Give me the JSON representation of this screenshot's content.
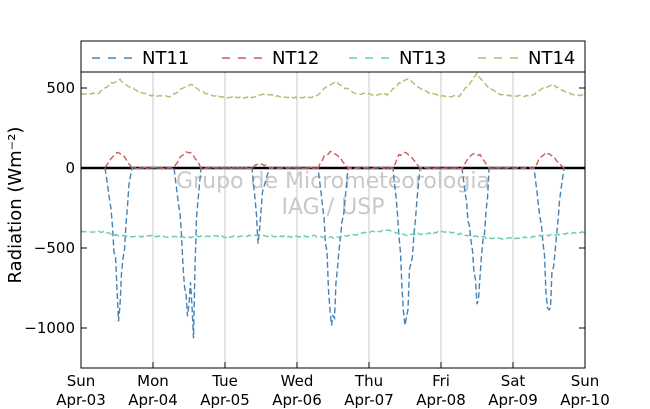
{
  "chart_data": {
    "type": "line",
    "ylabel": "Radiation (Wm⁻²)",
    "ylim": [
      -1250,
      600
    ],
    "xlim": [
      "2016-04-03 00:00",
      "2016-04-10 00:00"
    ],
    "yticks": [
      500,
      0,
      -500,
      -1000
    ],
    "ytick_labels": [
      "500",
      "0",
      "−500",
      "−1000"
    ],
    "xtick_labels": [
      {
        "day": "Sun",
        "date": "Apr-03"
      },
      {
        "day": "Mon",
        "date": "Apr-04"
      },
      {
        "day": "Tue",
        "date": "Apr-05"
      },
      {
        "day": "Wed",
        "date": "Apr-06"
      },
      {
        "day": "Thu",
        "date": "Apr-07"
      },
      {
        "day": "Fri",
        "date": "Apr-08"
      },
      {
        "day": "Sat",
        "date": "Apr-09"
      },
      {
        "day": "Sun",
        "date": "Apr-10"
      }
    ],
    "grid": "vertical",
    "legend_position": "top",
    "zero_line": true,
    "watermark": [
      "Grupo de Micrometeorologia",
      "IAG / USP"
    ],
    "series": [
      {
        "name": "NT11",
        "color": "#4682b4",
        "values": [
          [
            "2016-04-03 08:00",
            0
          ],
          [
            "2016-04-03 10:00",
            -250
          ],
          [
            "2016-04-03 11:30",
            -600
          ],
          [
            "2016-04-03 12:30",
            -940
          ],
          [
            "2016-04-03 13:30",
            -700
          ],
          [
            "2016-04-03 15:00",
            -350
          ],
          [
            "2016-04-03 16:00",
            -100
          ],
          [
            "2016-04-03 17:00",
            0
          ],
          [
            "2016-04-04 07:00",
            0
          ],
          [
            "2016-04-04 09:00",
            -300
          ],
          [
            "2016-04-04 10:30",
            -700
          ],
          [
            "2016-04-04 11:30",
            -850
          ],
          [
            "2016-04-04 12:30",
            -700
          ],
          [
            "2016-04-04 13:30",
            -1100
          ],
          [
            "2016-04-04 14:30",
            -300
          ],
          [
            "2016-04-04 15:30",
            -100
          ],
          [
            "2016-04-04 16:00",
            0
          ],
          [
            "2016-04-05 09:00",
            0
          ],
          [
            "2016-04-05 10:00",
            -200
          ],
          [
            "2016-04-05 11:00",
            -450
          ],
          [
            "2016-04-05 12:30",
            -150
          ],
          [
            "2016-04-05 14:00",
            -50
          ],
          [
            "2016-04-05 15:00",
            0
          ],
          [
            "2016-04-06 07:00",
            0
          ],
          [
            "2016-04-06 09:00",
            -300
          ],
          [
            "2016-04-06 10:30",
            -700
          ],
          [
            "2016-04-06 11:30",
            -920
          ],
          [
            "2016-04-06 12:30",
            -850
          ],
          [
            "2016-04-06 14:00",
            -500
          ],
          [
            "2016-04-06 15:30",
            -300
          ],
          [
            "2016-04-06 17:00",
            0
          ],
          [
            "2016-04-07 08:00",
            0
          ],
          [
            "2016-04-07 10:00",
            -400
          ],
          [
            "2016-04-07 11:00",
            -700
          ],
          [
            "2016-04-07 12:00",
            -990
          ],
          [
            "2016-04-07 13:00",
            -800
          ],
          [
            "2016-04-07 14:30",
            -500
          ],
          [
            "2016-04-07 16:00",
            -200
          ],
          [
            "2016-04-07 17:00",
            0
          ],
          [
            "2016-04-08 07:00",
            0
          ],
          [
            "2016-04-08 09:00",
            -300
          ],
          [
            "2016-04-08 10:30",
            -500
          ],
          [
            "2016-04-08 12:00",
            -850
          ],
          [
            "2016-04-08 13:00",
            -700
          ],
          [
            "2016-04-08 14:30",
            -400
          ],
          [
            "2016-04-08 15:30",
            -200
          ],
          [
            "2016-04-08 16:00",
            0
          ],
          [
            "2016-04-09 07:00",
            0
          ],
          [
            "2016-04-09 09:00",
            -300
          ],
          [
            "2016-04-09 10:30",
            -600
          ],
          [
            "2016-04-09 11:30",
            -950
          ],
          [
            "2016-04-09 12:30",
            -800
          ],
          [
            "2016-04-09 14:00",
            -500
          ],
          [
            "2016-04-09 15:30",
            -200
          ],
          [
            "2016-04-09 17:00",
            0
          ]
        ]
      },
      {
        "name": "NT12",
        "color": "#cd5c5c",
        "values": [
          [
            "2016-04-03 08:00",
            0
          ],
          [
            "2016-04-03 10:00",
            60
          ],
          [
            "2016-04-03 12:00",
            100
          ],
          [
            "2016-04-03 14:00",
            80
          ],
          [
            "2016-04-03 16:00",
            30
          ],
          [
            "2016-04-03 17:00",
            0
          ],
          [
            "2016-04-04 07:00",
            0
          ],
          [
            "2016-04-04 09:00",
            70
          ],
          [
            "2016-04-04 11:00",
            100
          ],
          [
            "2016-04-04 13:00",
            90
          ],
          [
            "2016-04-04 15:00",
            40
          ],
          [
            "2016-04-04 16:00",
            0
          ],
          [
            "2016-04-05 09:00",
            0
          ],
          [
            "2016-04-05 11:00",
            30
          ],
          [
            "2016-04-05 13:00",
            20
          ],
          [
            "2016-04-05 15:00",
            0
          ],
          [
            "2016-04-06 07:00",
            0
          ],
          [
            "2016-04-06 09:00",
            70
          ],
          [
            "2016-04-06 11:00",
            100
          ],
          [
            "2016-04-06 13:00",
            90
          ],
          [
            "2016-04-06 15:00",
            50
          ],
          [
            "2016-04-06 17:00",
            0
          ],
          [
            "2016-04-07 08:00",
            0
          ],
          [
            "2016-04-07 10:00",
            80
          ],
          [
            "2016-04-07 12:00",
            95
          ],
          [
            "2016-04-07 14:00",
            70
          ],
          [
            "2016-04-07 17:00",
            0
          ],
          [
            "2016-04-08 07:00",
            0
          ],
          [
            "2016-04-08 09:00",
            60
          ],
          [
            "2016-04-08 11:00",
            90
          ],
          [
            "2016-04-08 13:00",
            80
          ],
          [
            "2016-04-08 15:00",
            30
          ],
          [
            "2016-04-08 16:00",
            0
          ],
          [
            "2016-04-09 07:00",
            0
          ],
          [
            "2016-04-09 09:00",
            60
          ],
          [
            "2016-04-09 11:00",
            95
          ],
          [
            "2016-04-09 13:00",
            80
          ],
          [
            "2016-04-09 15:00",
            40
          ],
          [
            "2016-04-09 17:00",
            0
          ]
        ]
      },
      {
        "name": "NT13",
        "color": "#66cdaa",
        "values": [
          [
            "2016-04-03 00:00",
            -400
          ],
          [
            "2016-04-03 06:00",
            -395
          ],
          [
            "2016-04-03 12:00",
            -420
          ],
          [
            "2016-04-03 18:00",
            -430
          ],
          [
            "2016-04-04 00:00",
            -425
          ],
          [
            "2016-04-04 06:00",
            -430
          ],
          [
            "2016-04-04 12:00",
            -435
          ],
          [
            "2016-04-04 18:00",
            -425
          ],
          [
            "2016-04-05 00:00",
            -430
          ],
          [
            "2016-04-05 06:00",
            -425
          ],
          [
            "2016-04-05 12:00",
            -420
          ],
          [
            "2016-04-05 18:00",
            -430
          ],
          [
            "2016-04-06 00:00",
            -430
          ],
          [
            "2016-04-06 06:00",
            -425
          ],
          [
            "2016-04-06 12:00",
            -435
          ],
          [
            "2016-04-06 18:00",
            -420
          ],
          [
            "2016-04-07 00:00",
            -400
          ],
          [
            "2016-04-07 06:00",
            -390
          ],
          [
            "2016-04-07 12:00",
            -420
          ],
          [
            "2016-04-07 18:00",
            -410
          ],
          [
            "2016-04-08 00:00",
            -400
          ],
          [
            "2016-04-08 06:00",
            -410
          ],
          [
            "2016-04-08 12:00",
            -430
          ],
          [
            "2016-04-08 18:00",
            -440
          ],
          [
            "2016-04-09 00:00",
            -440
          ],
          [
            "2016-04-09 06:00",
            -430
          ],
          [
            "2016-04-09 12:00",
            -420
          ],
          [
            "2016-04-09 18:00",
            -410
          ],
          [
            "2016-04-10 00:00",
            -400
          ]
        ]
      },
      {
        "name": "NT14",
        "color": "#bdb76b",
        "values": [
          [
            "2016-04-03 00:00",
            460
          ],
          [
            "2016-04-03 06:00",
            470
          ],
          [
            "2016-04-03 10:00",
            530
          ],
          [
            "2016-04-03 13:00",
            550
          ],
          [
            "2016-04-03 16:00",
            510
          ],
          [
            "2016-04-03 20:00",
            470
          ],
          [
            "2016-04-04 00:00",
            450
          ],
          [
            "2016-04-04 06:00",
            450
          ],
          [
            "2016-04-04 10:00",
            500
          ],
          [
            "2016-04-04 13:00",
            520
          ],
          [
            "2016-04-04 16:00",
            480
          ],
          [
            "2016-04-04 20:00",
            450
          ],
          [
            "2016-04-05 00:00",
            440
          ],
          [
            "2016-04-05 08:00",
            440
          ],
          [
            "2016-04-05 13:00",
            460
          ],
          [
            "2016-04-05 20:00",
            445
          ],
          [
            "2016-04-06 00:00",
            440
          ],
          [
            "2016-04-06 06:00",
            445
          ],
          [
            "2016-04-06 10:00",
            510
          ],
          [
            "2016-04-06 13:00",
            540
          ],
          [
            "2016-04-06 16:00",
            500
          ],
          [
            "2016-04-06 20:00",
            465
          ],
          [
            "2016-04-07 00:00",
            460
          ],
          [
            "2016-04-07 06:00",
            460
          ],
          [
            "2016-04-07 10:00",
            530
          ],
          [
            "2016-04-07 13:00",
            560
          ],
          [
            "2016-04-07 16:00",
            510
          ],
          [
            "2016-04-07 20:00",
            470
          ],
          [
            "2016-04-08 00:00",
            450
          ],
          [
            "2016-04-08 06:00",
            450
          ],
          [
            "2016-04-08 10:00",
            540
          ],
          [
            "2016-04-08 12:00",
            590
          ],
          [
            "2016-04-08 16:00",
            500
          ],
          [
            "2016-04-08 20:00",
            460
          ],
          [
            "2016-04-09 00:00",
            450
          ],
          [
            "2016-04-09 06:00",
            450
          ],
          [
            "2016-04-09 10:00",
            500
          ],
          [
            "2016-04-09 13:00",
            520
          ],
          [
            "2016-04-09 16:00",
            490
          ],
          [
            "2016-04-09 20:00",
            460
          ],
          [
            "2016-04-10 00:00",
            450
          ]
        ]
      }
    ]
  }
}
